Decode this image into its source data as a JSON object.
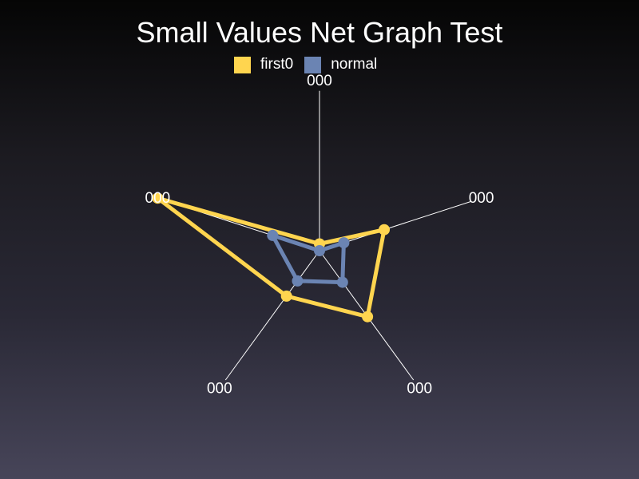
{
  "chart_data": {
    "type": "radar",
    "title": "Small Values Net Graph Test",
    "axis_labels": [
      "000",
      "000",
      "000",
      "000",
      "000"
    ],
    "range": [
      0,
      1
    ],
    "legend_position": "top-center",
    "series": [
      {
        "name": "first0",
        "color": "#ffd54f",
        "values": [
          0.04,
          0.4,
          0.48,
          0.33,
          1.0
        ]
      },
      {
        "name": "normal",
        "color": "#6b84b3",
        "values": [
          0.0,
          0.15,
          0.23,
          0.22,
          0.29
        ]
      }
    ]
  }
}
